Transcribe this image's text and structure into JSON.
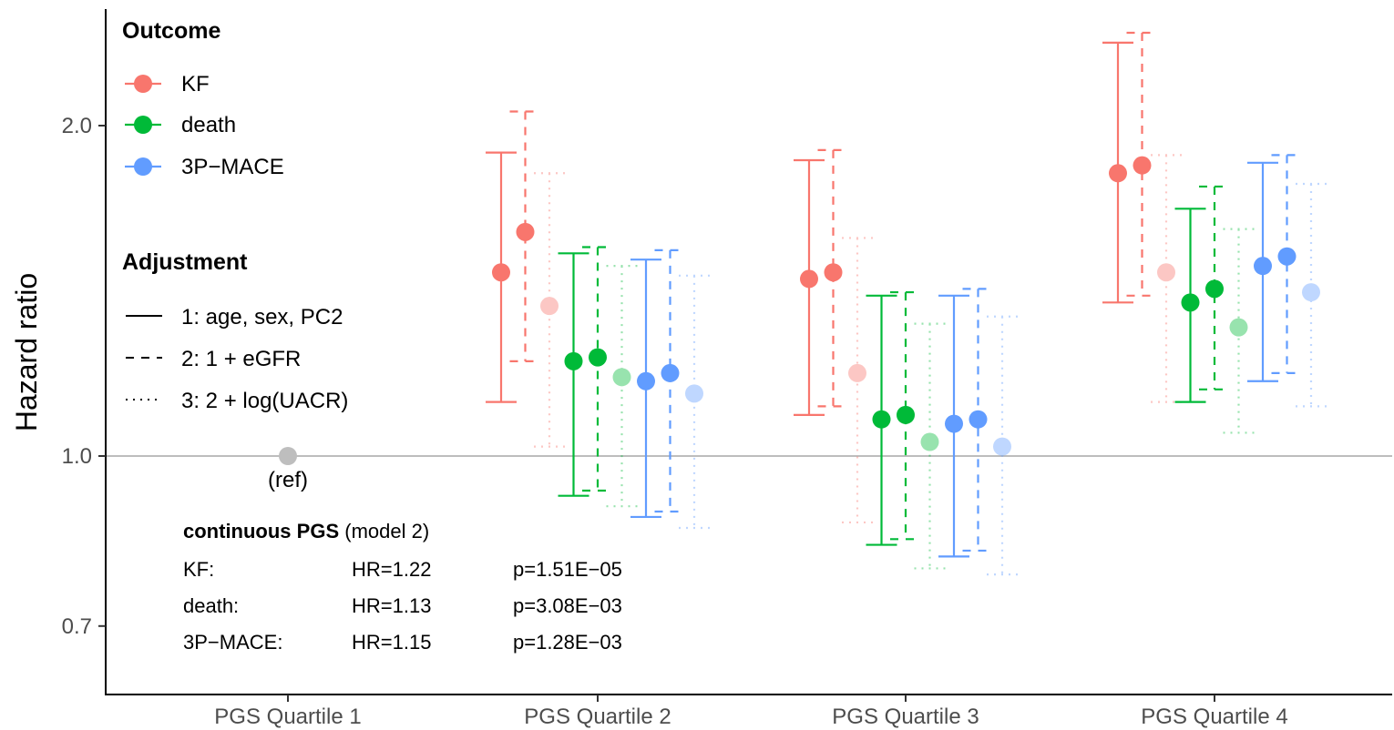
{
  "chart_data": {
    "type": "scatter",
    "ylabel": "Hazard ratio",
    "xlabel": "",
    "y_scale": "log",
    "ylim": [
      0.6,
      2.9
    ],
    "y_ticks": [
      "2.0",
      "1.0",
      "0.7"
    ],
    "reference_line": 1.0,
    "categories": [
      "PGS Quartile 1",
      "PGS Quartile 2",
      "PGS Quartile 3",
      "PGS Quartile 4"
    ],
    "reference_point": {
      "category": "PGS Quartile 1",
      "value": 1.0,
      "label": "(ref)",
      "color": "#bebebe"
    },
    "outcomes": [
      {
        "name": "KF",
        "color": "#F8766D"
      },
      {
        "name": "death",
        "color": "#00BA38"
      },
      {
        "name": "3P−MACE",
        "color": "#619CFF"
      }
    ],
    "adjustments": [
      {
        "name": "1: age, sex, PC2",
        "line": "solid"
      },
      {
        "name": "2: 1 + eGFR",
        "line": "dashed"
      },
      {
        "name": "3: 2 + log(UACR)",
        "line": "dotted"
      }
    ],
    "legend": {
      "outcome_title": "Outcome",
      "adjustment_title": "Adjustment",
      "placement": "top-left"
    },
    "series": [
      {
        "category": "PGS Quartile 2",
        "outcome": "KF",
        "adjustment": 1,
        "hr": 1.47,
        "lo": 1.12,
        "hi": 1.89
      },
      {
        "category": "PGS Quartile 2",
        "outcome": "KF",
        "adjustment": 2,
        "hr": 1.6,
        "lo": 1.22,
        "hi": 2.06
      },
      {
        "category": "PGS Quartile 2",
        "outcome": "KF",
        "adjustment": 3,
        "hr": 1.37,
        "lo": 1.02,
        "hi": 1.81
      },
      {
        "category": "PGS Quartile 2",
        "outcome": "death",
        "adjustment": 1,
        "hr": 1.22,
        "lo": 0.92,
        "hi": 1.53
      },
      {
        "category": "PGS Quartile 2",
        "outcome": "death",
        "adjustment": 2,
        "hr": 1.23,
        "lo": 0.93,
        "hi": 1.55
      },
      {
        "category": "PGS Quartile 2",
        "outcome": "death",
        "adjustment": 3,
        "hr": 1.18,
        "lo": 0.9,
        "hi": 1.49
      },
      {
        "category": "PGS Quartile 2",
        "outcome": "3P−MACE",
        "adjustment": 1,
        "hr": 1.17,
        "lo": 0.88,
        "hi": 1.51
      },
      {
        "category": "PGS Quartile 2",
        "outcome": "3P−MACE",
        "adjustment": 2,
        "hr": 1.19,
        "lo": 0.89,
        "hi": 1.54
      },
      {
        "category": "PGS Quartile 2",
        "outcome": "3P−MACE",
        "adjustment": 3,
        "hr": 1.14,
        "lo": 0.86,
        "hi": 1.46
      },
      {
        "category": "PGS Quartile 3",
        "outcome": "KF",
        "adjustment": 1,
        "hr": 1.45,
        "lo": 1.09,
        "hi": 1.86
      },
      {
        "category": "PGS Quartile 3",
        "outcome": "KF",
        "adjustment": 2,
        "hr": 1.47,
        "lo": 1.11,
        "hi": 1.9
      },
      {
        "category": "PGS Quartile 3",
        "outcome": "KF",
        "adjustment": 3,
        "hr": 1.19,
        "lo": 0.87,
        "hi": 1.58
      },
      {
        "category": "PGS Quartile 3",
        "outcome": "death",
        "adjustment": 1,
        "hr": 1.08,
        "lo": 0.83,
        "hi": 1.4
      },
      {
        "category": "PGS Quartile 3",
        "outcome": "death",
        "adjustment": 2,
        "hr": 1.09,
        "lo": 0.84,
        "hi": 1.41
      },
      {
        "category": "PGS Quartile 3",
        "outcome": "death",
        "adjustment": 3,
        "hr": 1.03,
        "lo": 0.79,
        "hi": 1.32
      },
      {
        "category": "PGS Quartile 3",
        "outcome": "3P−MACE",
        "adjustment": 1,
        "hr": 1.07,
        "lo": 0.81,
        "hi": 1.4
      },
      {
        "category": "PGS Quartile 3",
        "outcome": "3P−MACE",
        "adjustment": 2,
        "hr": 1.08,
        "lo": 0.82,
        "hi": 1.42
      },
      {
        "category": "PGS Quartile 3",
        "outcome": "3P−MACE",
        "adjustment": 3,
        "hr": 1.02,
        "lo": 0.78,
        "hi": 1.34
      },
      {
        "category": "PGS Quartile 4",
        "outcome": "KF",
        "adjustment": 1,
        "hr": 1.81,
        "lo": 1.38,
        "hi": 2.38
      },
      {
        "category": "PGS Quartile 4",
        "outcome": "KF",
        "adjustment": 2,
        "hr": 1.84,
        "lo": 1.4,
        "hi": 2.43
      },
      {
        "category": "PGS Quartile 4",
        "outcome": "KF",
        "adjustment": 3,
        "hr": 1.47,
        "lo": 1.12,
        "hi": 1.88
      },
      {
        "category": "PGS Quartile 4",
        "outcome": "death",
        "adjustment": 1,
        "hr": 1.38,
        "lo": 1.12,
        "hi": 1.68
      },
      {
        "category": "PGS Quartile 4",
        "outcome": "death",
        "adjustment": 2,
        "hr": 1.42,
        "lo": 1.15,
        "hi": 1.76
      },
      {
        "category": "PGS Quartile 4",
        "outcome": "death",
        "adjustment": 3,
        "hr": 1.31,
        "lo": 1.05,
        "hi": 1.61
      },
      {
        "category": "PGS Quartile 4",
        "outcome": "3P−MACE",
        "adjustment": 1,
        "hr": 1.49,
        "lo": 1.17,
        "hi": 1.85
      },
      {
        "category": "PGS Quartile 4",
        "outcome": "3P−MACE",
        "adjustment": 2,
        "hr": 1.52,
        "lo": 1.19,
        "hi": 1.88
      },
      {
        "category": "PGS Quartile 4",
        "outcome": "3P−MACE",
        "adjustment": 3,
        "hr": 1.41,
        "lo": 1.11,
        "hi": 1.77
      }
    ]
  },
  "annotation": {
    "title_bold": "continuous PGS",
    "title_rest": " (model 2)",
    "rows": [
      {
        "label": "KF:",
        "hr": "HR=1.22",
        "p": "p=1.51E−05"
      },
      {
        "label": "death:",
        "hr": "HR=1.13",
        "p": "p=3.08E−03"
      },
      {
        "label": "3P−MACE:",
        "hr": "HR=1.15",
        "p": "p=1.28E−03"
      }
    ]
  }
}
